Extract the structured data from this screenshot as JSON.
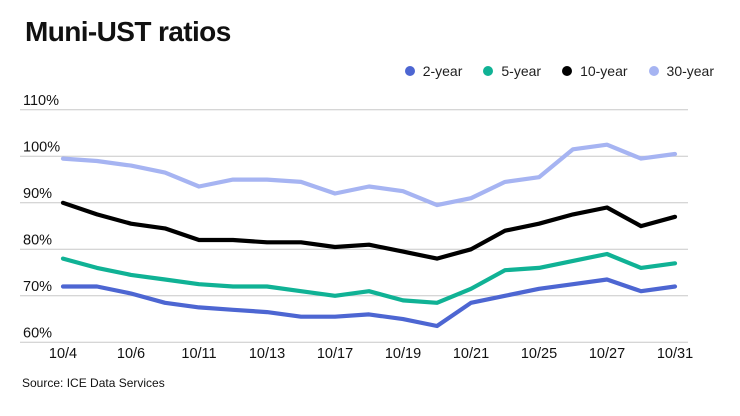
{
  "title": "Muni-UST ratios",
  "source": "Source: ICE Data Services",
  "colors": {
    "grid": "#c8c8c8",
    "text": "#111111"
  },
  "chart_data": {
    "type": "line",
    "title": "Muni-UST ratios",
    "x_labels": [
      "10/4",
      "10/5",
      "10/6",
      "10/7",
      "10/11",
      "10/12",
      "10/13",
      "10/14",
      "10/17",
      "10/18",
      "10/19",
      "10/20",
      "10/21",
      "10/24",
      "10/25",
      "10/26",
      "10/27",
      "10/28",
      "10/31"
    ],
    "x_ticks_shown": [
      "10/4",
      "10/6",
      "10/11",
      "10/13",
      "10/17",
      "10/19",
      "10/21",
      "10/25",
      "10/27",
      "10/31"
    ],
    "ylim": [
      60,
      110
    ],
    "y_ticks": [
      110,
      100,
      90,
      80,
      70,
      60
    ],
    "y_tick_suffix": "%",
    "grid": "horizontal",
    "legend_position": "top-right",
    "series": [
      {
        "name": "2-year",
        "color": "#4d66d2",
        "values": [
          72,
          72,
          70.5,
          68.5,
          67.5,
          67,
          66.5,
          65.5,
          65.5,
          66,
          65,
          63.5,
          68.5,
          70,
          71.5,
          72.5,
          73.5,
          71,
          72
        ]
      },
      {
        "name": "5-year",
        "color": "#10b295",
        "values": [
          78,
          76,
          74.5,
          73.5,
          72.5,
          72,
          72,
          71,
          70,
          71,
          69,
          68.5,
          71.5,
          75.5,
          76,
          77.5,
          79,
          76,
          77
        ]
      },
      {
        "name": "10-year",
        "color": "#000000",
        "values": [
          90,
          87.5,
          85.5,
          84.5,
          82,
          82,
          81.5,
          81.5,
          80.5,
          81,
          79.5,
          78,
          80,
          84,
          85.5,
          87.5,
          89,
          85,
          87
        ]
      },
      {
        "name": "30-year",
        "color": "#a6b4f2",
        "values": [
          99.5,
          99,
          98,
          96.5,
          93.5,
          95,
          95,
          94.5,
          92,
          93.5,
          92.5,
          89.5,
          91,
          94.5,
          95.5,
          101.5,
          102.5,
          99.5,
          100.5
        ]
      }
    ]
  }
}
